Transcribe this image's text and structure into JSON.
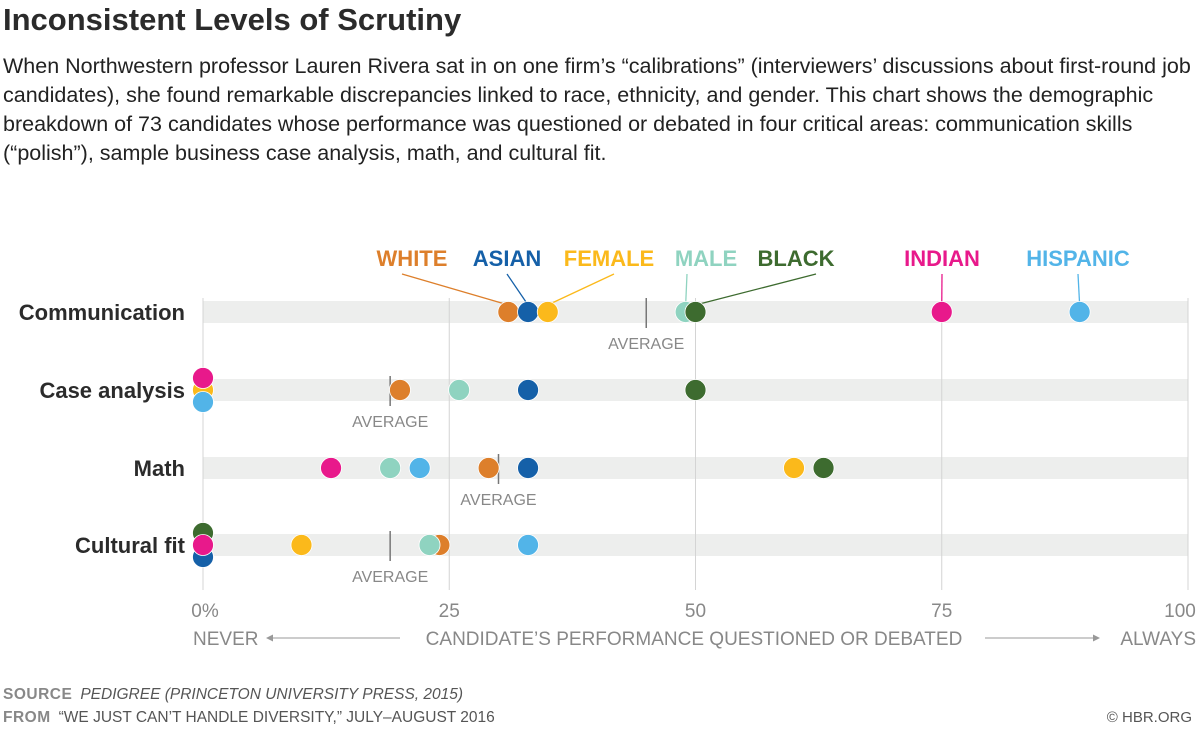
{
  "title": "Inconsistent Levels of Scrutiny",
  "description": "When Northwestern professor Lauren Rivera sat in on one firm’s “calibrations” (interviewers’ discussions about first-round job candidates), she found remarkable discrepancies linked to race, ethnicity, and gender. This chart shows the demographic breakdown of 73 candidates whose performance was questioned or debated in four critical areas: communication skills (“polish”), sample business case analysis, math, and cultural fit.",
  "chart_data": {
    "type": "scatter",
    "xlabel": "CANDIDATE’S PERFORMANCE QUESTIONED OR DEBATED",
    "xlabel_left": "NEVER",
    "xlabel_right": "ALWAYS",
    "xlim": [
      0,
      100
    ],
    "ticks": [
      0,
      25,
      50,
      75,
      100
    ],
    "tick_labels": [
      "0%",
      "25",
      "50",
      "75",
      "100"
    ],
    "average_label": "AVERAGE",
    "groups": [
      {
        "name": "WHITE",
        "color": "#dd7f2b"
      },
      {
        "name": "ASIAN",
        "color": "#1560a8"
      },
      {
        "name": "FEMALE",
        "color": "#fbb91b"
      },
      {
        "name": "MALE",
        "color": "#8fd3c0"
      },
      {
        "name": "BLACK",
        "color": "#3d6b2f"
      },
      {
        "name": "INDIAN",
        "color": "#e8198b"
      },
      {
        "name": "HISPANIC",
        "color": "#52b4e8"
      }
    ],
    "categories": [
      "Communication",
      "Case analysis",
      "Math",
      "Cultural fit"
    ],
    "averages": [
      45,
      19,
      30,
      19
    ],
    "series": [
      {
        "name": "WHITE",
        "values": [
          31,
          20,
          29,
          24
        ]
      },
      {
        "name": "ASIAN",
        "values": [
          33,
          33,
          33,
          0
        ]
      },
      {
        "name": "FEMALE",
        "values": [
          35,
          0,
          60,
          10
        ]
      },
      {
        "name": "MALE",
        "values": [
          49,
          26,
          19,
          23
        ]
      },
      {
        "name": "BLACK",
        "values": [
          50,
          50,
          63,
          0
        ]
      },
      {
        "name": "INDIAN",
        "values": [
          75,
          0,
          13,
          0
        ]
      },
      {
        "name": "HISPANIC",
        "values": [
          89,
          0,
          22,
          33
        ]
      }
    ]
  },
  "footer": {
    "source_label": "SOURCE",
    "source_text": "PEDIGREE (PRINCETON UNIVERSITY PRESS, 2015)",
    "from_label": "FROM",
    "from_text": "“WE JUST CAN’T HANDLE DIVERSITY,” JULY–AUGUST 2016",
    "copyright": "© HBR.ORG"
  }
}
